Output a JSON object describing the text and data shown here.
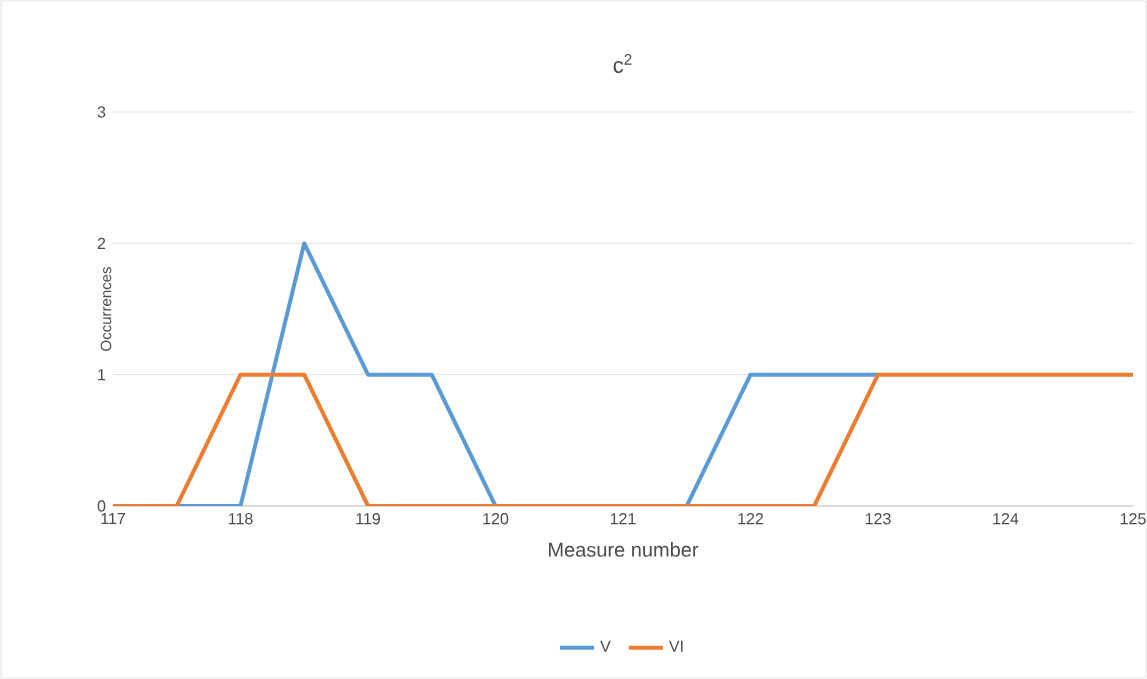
{
  "chart_data": {
    "type": "line",
    "title": "c$^{2}$",
    "xlabel": "Measure number",
    "ylabel": "Occurrences",
    "x": [
      117,
      117.5,
      118,
      118.5,
      119,
      119.5,
      120,
      120.5,
      121,
      121.5,
      122,
      122.5,
      123,
      123.5,
      124,
      124.5,
      125
    ],
    "series": [
      {
        "name": "V",
        "color": "#5b9bd5",
        "values": [
          null,
          0,
          0,
          2,
          1,
          1,
          0,
          0,
          0,
          0,
          1,
          1,
          1,
          null,
          null,
          null,
          null
        ]
      },
      {
        "name": "VI",
        "color": "#ed7d31",
        "values": [
          0,
          0,
          1,
          1,
          0,
          0,
          0,
          0,
          0,
          0,
          0,
          0,
          1,
          1,
          1,
          1,
          1
        ]
      }
    ],
    "xlim": [
      117,
      125
    ],
    "xticks": [
      117,
      118,
      119,
      120,
      121,
      122,
      123,
      124,
      125
    ],
    "ylim": [
      0,
      3
    ],
    "yticks": [
      0,
      1,
      2,
      3
    ],
    "grid": "y",
    "legend": "bottom",
    "marker": "none",
    "line_style": "solid"
  }
}
